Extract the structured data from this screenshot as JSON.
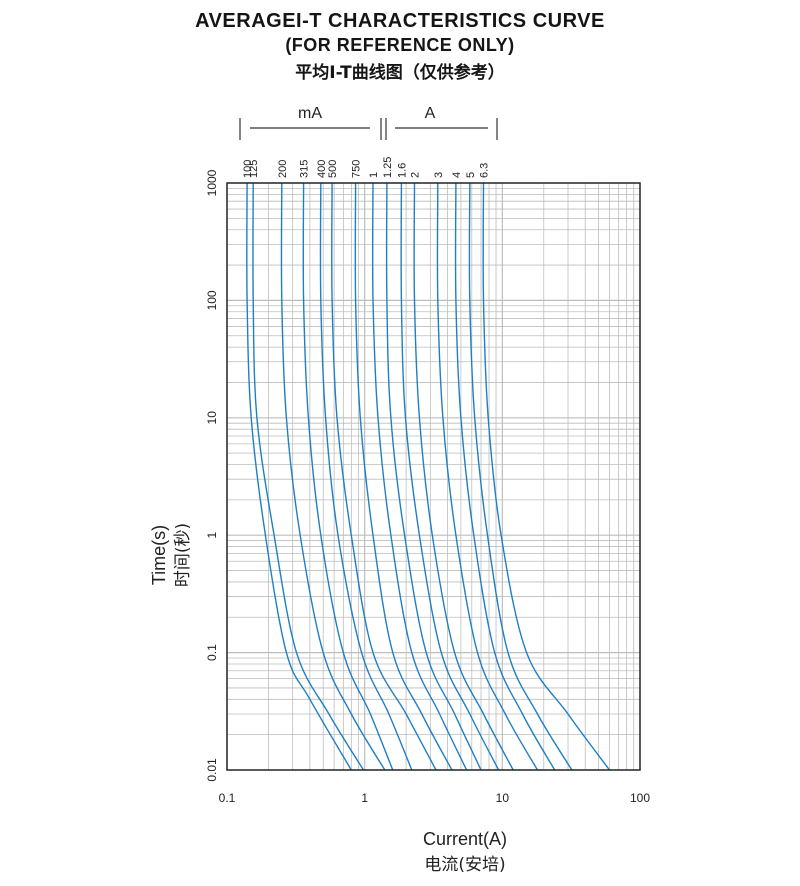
{
  "header": {
    "title_line1": "AVERAGEI-T CHARACTERISTICS CURVE",
    "title_line2": "(FOR REFERENCE ONLY)",
    "title_line3": "平均I-T曲线图（仅供参考）"
  },
  "axes": {
    "xlabel_en": "Current(A)",
    "xlabel_cn": "电流(安培)",
    "ylabel_en": "Time(s)",
    "ylabel_cn": "时间(秒)",
    "unit_ma": "mA",
    "unit_a": "A"
  },
  "colors": {
    "curve": "#1f7fc4",
    "grid": "#bdbdbd",
    "frame": "#222222"
  },
  "chart_data": {
    "type": "line",
    "title": "AVERAGEI-T CHARACTERISTICS CURVE",
    "xlabel": "Current(A)",
    "ylabel": "Time(s)",
    "xscale": "log",
    "yscale": "log",
    "xlim": [
      0.1,
      100
    ],
    "ylim": [
      0.01,
      1000
    ],
    "grid": true,
    "x_ticks": [
      "0.1",
      "1",
      "10",
      "100"
    ],
    "y_ticks": [
      "0.01",
      "0.1",
      "1",
      "10",
      "100",
      "1000"
    ],
    "rating_labels_ma": [
      "100",
      "125",
      "200",
      "315",
      "400",
      "500",
      "750"
    ],
    "rating_labels_a": [
      "1",
      "1.25",
      "1.6",
      "2",
      "3",
      "4",
      "5",
      "6.3"
    ],
    "series": [
      {
        "name": "100",
        "points": [
          [
            0.14,
            1000
          ],
          [
            0.14,
            100
          ],
          [
            0.15,
            10
          ],
          [
            0.19,
            1
          ],
          [
            0.27,
            0.1
          ],
          [
            0.4,
            0.04
          ],
          [
            0.8,
            0.01
          ]
        ]
      },
      {
        "name": "125",
        "points": [
          [
            0.155,
            1000
          ],
          [
            0.155,
            100
          ],
          [
            0.165,
            10
          ],
          [
            0.22,
            1
          ],
          [
            0.32,
            0.1
          ],
          [
            0.55,
            0.03
          ],
          [
            0.98,
            0.01
          ]
        ]
      },
      {
        "name": "200",
        "points": [
          [
            0.25,
            1000
          ],
          [
            0.25,
            100
          ],
          [
            0.27,
            10
          ],
          [
            0.34,
            1
          ],
          [
            0.5,
            0.1
          ],
          [
            0.8,
            0.03
          ],
          [
            1.4,
            0.01
          ]
        ]
      },
      {
        "name": "315",
        "points": [
          [
            0.36,
            1000
          ],
          [
            0.36,
            100
          ],
          [
            0.39,
            10
          ],
          [
            0.48,
            1
          ],
          [
            0.7,
            0.1
          ],
          [
            1.1,
            0.03
          ],
          [
            1.6,
            0.01
          ]
        ]
      },
      {
        "name": "400",
        "points": [
          [
            0.48,
            1000
          ],
          [
            0.48,
            100
          ],
          [
            0.52,
            10
          ],
          [
            0.64,
            1
          ],
          [
            0.95,
            0.1
          ],
          [
            1.5,
            0.03
          ],
          [
            2.2,
            0.01
          ]
        ]
      },
      {
        "name": "500",
        "points": [
          [
            0.58,
            1000
          ],
          [
            0.58,
            100
          ],
          [
            0.63,
            10
          ],
          [
            0.8,
            1
          ],
          [
            1.15,
            0.1
          ],
          [
            2.0,
            0.03
          ],
          [
            3.3,
            0.01
          ]
        ]
      },
      {
        "name": "750",
        "points": [
          [
            0.86,
            1000
          ],
          [
            0.86,
            100
          ],
          [
            0.93,
            10
          ],
          [
            1.15,
            1
          ],
          [
            1.6,
            0.1
          ],
          [
            2.6,
            0.03
          ],
          [
            4.3,
            0.01
          ]
        ]
      },
      {
        "name": "1",
        "points": [
          [
            1.15,
            1000
          ],
          [
            1.15,
            100
          ],
          [
            1.25,
            10
          ],
          [
            1.55,
            1
          ],
          [
            2.2,
            0.1
          ],
          [
            3.5,
            0.03
          ],
          [
            5.5,
            0.01
          ]
        ]
      },
      {
        "name": "1.25",
        "points": [
          [
            1.45,
            1000
          ],
          [
            1.45,
            100
          ],
          [
            1.55,
            10
          ],
          [
            1.95,
            1
          ],
          [
            2.8,
            0.1
          ],
          [
            4.5,
            0.03
          ],
          [
            7,
            0.01
          ]
        ]
      },
      {
        "name": "1.6",
        "points": [
          [
            1.85,
            1000
          ],
          [
            1.85,
            100
          ],
          [
            1.98,
            10
          ],
          [
            2.5,
            1
          ],
          [
            3.6,
            0.1
          ],
          [
            5.8,
            0.03
          ],
          [
            9.4,
            0.01
          ]
        ]
      },
      {
        "name": "2",
        "points": [
          [
            2.3,
            1000
          ],
          [
            2.3,
            100
          ],
          [
            2.5,
            10
          ],
          [
            3.1,
            1
          ],
          [
            4.5,
            0.1
          ],
          [
            7.3,
            0.03
          ],
          [
            12,
            0.01
          ]
        ]
      },
      {
        "name": "3",
        "points": [
          [
            3.4,
            1000
          ],
          [
            3.4,
            100
          ],
          [
            3.7,
            10
          ],
          [
            4.6,
            1
          ],
          [
            6.6,
            0.1
          ],
          [
            10.5,
            0.03
          ],
          [
            18,
            0.01
          ]
        ]
      },
      {
        "name": "4",
        "points": [
          [
            4.6,
            1000
          ],
          [
            4.6,
            100
          ],
          [
            5,
            10
          ],
          [
            6.2,
            1
          ],
          [
            8.8,
            0.1
          ],
          [
            14,
            0.03
          ],
          [
            24,
            0.01
          ]
        ]
      },
      {
        "name": "5",
        "points": [
          [
            5.8,
            1000
          ],
          [
            5.8,
            100
          ],
          [
            6.3,
            10
          ],
          [
            7.8,
            1
          ],
          [
            11,
            0.1
          ],
          [
            18,
            0.03
          ],
          [
            32,
            0.01
          ]
        ]
      },
      {
        "name": "6.3",
        "points": [
          [
            7.3,
            1000
          ],
          [
            7.3,
            100
          ],
          [
            7.9,
            10
          ],
          [
            9.8,
            1
          ],
          [
            15,
            0.1
          ],
          [
            30,
            0.03
          ],
          [
            60,
            0.01
          ]
        ]
      }
    ]
  }
}
